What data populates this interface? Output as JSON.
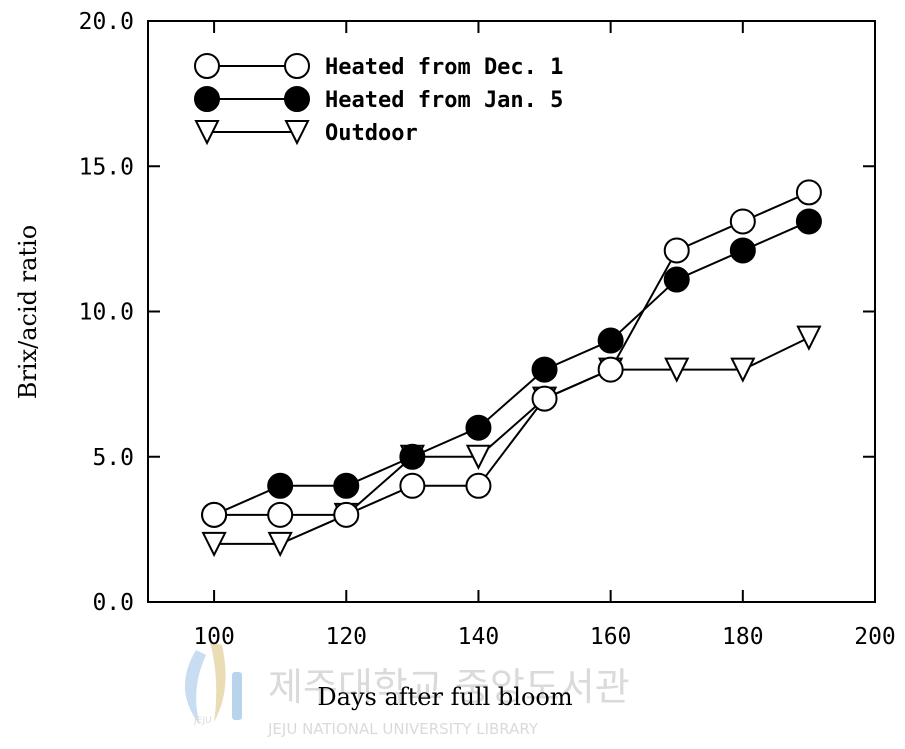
{
  "chart_data": {
    "type": "line",
    "title": "",
    "xlabel": "Days after full bloom",
    "ylabel": "Brix/acid ratio",
    "xlim": [
      90,
      200
    ],
    "ylim": [
      0,
      20
    ],
    "xticks": [
      100,
      120,
      140,
      160,
      180,
      200
    ],
    "xtick_labels": [
      "100",
      "120",
      "140",
      "160",
      "180",
      "200"
    ],
    "yticks": [
      0,
      5,
      10,
      15,
      20
    ],
    "ytick_labels": [
      "0.0",
      "5.0",
      "10.0",
      "15.0",
      "20.0"
    ],
    "grid": false,
    "legend_position": "top-left",
    "series": [
      {
        "name": "Heated from Dec. 1",
        "marker": "open-circle",
        "x": [
          100,
          110,
          120,
          130,
          140,
          150,
          160,
          170,
          180,
          190
        ],
        "y": [
          3.0,
          3.0,
          3.0,
          4.0,
          4.0,
          7.0,
          8.0,
          12.1,
          13.1,
          14.1
        ]
      },
      {
        "name": "Heated from Jan. 5",
        "marker": "filled-circle",
        "x": [
          100,
          110,
          120,
          130,
          140,
          150,
          160,
          170,
          180,
          190
        ],
        "y": [
          3.0,
          4.0,
          4.0,
          5.0,
          6.0,
          8.0,
          9.0,
          11.1,
          12.1,
          13.1
        ]
      },
      {
        "name": "Outdoor",
        "marker": "open-triangle-down",
        "x": [
          100,
          110,
          120,
          130,
          140,
          150,
          160,
          170,
          180,
          190
        ],
        "y": [
          2.0,
          2.0,
          3.0,
          5.0,
          5.0,
          7.0,
          8.0,
          8.0,
          8.0,
          9.1
        ]
      }
    ]
  },
  "watermark": {
    "korean_text": "제주대학교 중앙도서관",
    "english_text": "JEJU NATIONAL UNIVERSITY LIBRARY",
    "logo_text": "JEJU"
  }
}
